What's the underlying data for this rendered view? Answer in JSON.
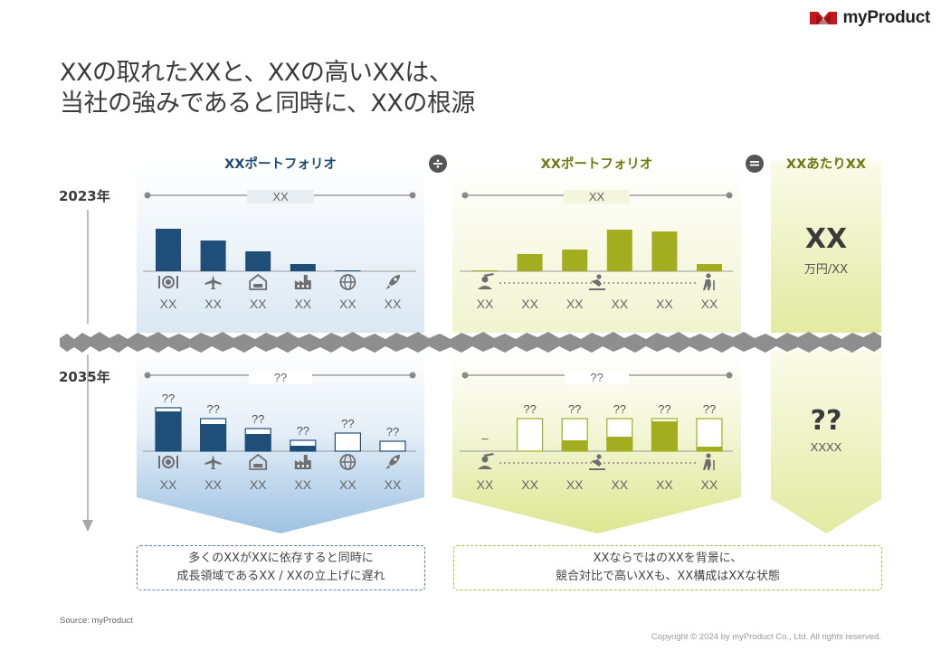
{
  "logo": {
    "text": "myProduct"
  },
  "title": {
    "line1": "XXの取れたXXと、XXの高いXXは、",
    "line2": "当社の強みであると同時に、XXの根源"
  },
  "years": {
    "y2023": "2023年",
    "y2035": "2035年"
  },
  "panels": {
    "left": {
      "title": "XXポートフォリオ",
      "tag_2023": "XX",
      "tag_2035": "??"
    },
    "middle": {
      "title": "XXポートフォリオ",
      "tag_2023": "XX",
      "tag_2035": "??"
    },
    "right": {
      "title": "XXあたりXX",
      "value_2023": "XX",
      "unit_2023": "万円/XX",
      "value_2035": "??",
      "unit_2035": "XXXX"
    }
  },
  "operators": {
    "divide": "÷",
    "equals": "="
  },
  "chart_data": [
    {
      "type": "bar",
      "title": "XXポートフォリオ",
      "period": "2023年",
      "categories": [
        "XX",
        "XX",
        "XX",
        "XX",
        "XX",
        "XX"
      ],
      "icons": [
        "dining-icon",
        "airplane-icon",
        "hotel-icon",
        "factory-icon",
        "globe-icon",
        "rocket-icon"
      ],
      "series": [
        {
          "values": [
            47,
            34,
            22,
            8,
            1,
            0
          ]
        }
      ]
    },
    {
      "type": "bar",
      "title": "XXポートフォリオ",
      "period": "2035年",
      "categories": [
        "XX",
        "XX",
        "XX",
        "XX",
        "XX",
        "XX"
      ],
      "data_labels": [
        "??",
        "??",
        "??",
        "??",
        "??",
        "??"
      ],
      "series": [
        {
          "values": [
            44,
            30,
            19,
            6,
            0,
            0
          ]
        }
      ],
      "outline_values": [
        48,
        36,
        25,
        12,
        20,
        11
      ]
    },
    {
      "type": "bar",
      "title": "XXポートフォリオ",
      "period": "2023年",
      "categories": [
        "XX",
        "XX",
        "XX",
        "XX",
        "XX",
        "XX"
      ],
      "axis_icons": [
        "graduate-icon",
        "skater-icon",
        "elderly-icon"
      ],
      "series": [
        {
          "values": [
            1,
            19,
            24,
            46,
            44,
            8
          ]
        }
      ]
    },
    {
      "type": "bar",
      "title": "XXポートフォリオ",
      "period": "2035年",
      "categories": [
        "XX",
        "XX",
        "XX",
        "XX",
        "XX",
        "XX"
      ],
      "data_labels": [
        "–",
        "??",
        "??",
        "??",
        "??",
        "??"
      ],
      "series": [
        {
          "values": [
            0,
            0,
            12,
            16,
            33,
            5
          ]
        }
      ],
      "outline_values": [
        0,
        36,
        36,
        36,
        36,
        36
      ]
    }
  ],
  "notes": {
    "left": [
      "多くのXXがXXに依存すると同時に",
      "成長領域であるXX / XXの立上げに遅れ"
    ],
    "right": [
      "XXならではのXXを背景に、",
      "競合対比で高いXXも、XX構成はXXな状態"
    ]
  },
  "source": "Source: myProduct",
  "copyright": "Copyright © 2024 by myProduct Co., Ltd.  All rights reserved.",
  "colors": {
    "blue": "#1f4e79",
    "green": "#a2ad1f",
    "gray": "#8a8a8a"
  }
}
